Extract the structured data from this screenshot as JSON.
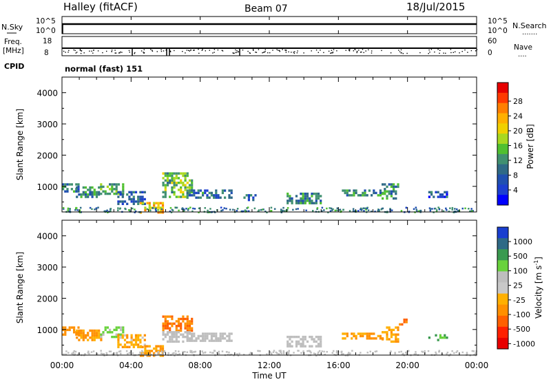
{
  "header": {
    "station": "Halley (fitACF)",
    "beam": "Beam 07",
    "date": "18/Jul/2015"
  },
  "panels": {
    "nsky": {
      "label": "N.Sky",
      "ticks_left": [
        "10^5",
        "10^0"
      ],
      "ticks_right": [
        "10^5",
        "10^0"
      ],
      "right_label": "N.Search",
      "right_dots": "......."
    },
    "freq": {
      "label_line1": "Freq.",
      "label_line2": "[MHz]",
      "ticks_left": [
        "18",
        "8"
      ],
      "ticks_right": [
        "60",
        "0"
      ],
      "right_label": "Nave",
      "right_dots": "....",
      "cpid_label": "CPID",
      "cpid_text": "normal (fast) 151"
    }
  },
  "colorbars": {
    "power": {
      "title": "Power [dB]",
      "labels": [
        "28",
        "24",
        "20",
        "16",
        "12",
        "8",
        "4"
      ],
      "colors": [
        "#e60000",
        "#ff3a00",
        "#ff7f00",
        "#ffb000",
        "#f0d000",
        "#a8d820",
        "#50c030",
        "#409070",
        "#2f6a86",
        "#2050b0",
        "#1d3fd0",
        "#0000ff"
      ]
    },
    "velocity": {
      "title": "Velocity [m s",
      "title_sup": "-1",
      "title_end": "]",
      "labels": [
        "1000",
        "500",
        "100",
        "25",
        "-25",
        "-100",
        "-500",
        "-1000"
      ],
      "colors": [
        "#1a3fd0",
        "#2f6a86",
        "#3a9a50",
        "#69d23c",
        "#bebebe",
        "#c8c8c8",
        "#ffb000",
        "#ff9000",
        "#ff6000",
        "#ff2000",
        "#e80000"
      ]
    }
  },
  "chart_data": [
    {
      "type": "heatmap",
      "title": "Power",
      "ylabel": "Slant Range [km]",
      "xlabel": "",
      "x_ticks": [
        "00:00",
        "04:00",
        "08:00",
        "12:00",
        "16:00",
        "20:00",
        "00:00"
      ],
      "y_ticks": [
        1000,
        2000,
        3000,
        4000
      ],
      "xlim_hours": [
        0,
        24
      ],
      "ylim_km": [
        180,
        4500
      ],
      "colorbar": "Power [dB]",
      "clim": [
        0,
        30
      ],
      "regions": [
        {
          "t0": 0.0,
          "t1": 1.0,
          "r0": 850,
          "r1": 1100,
          "value": 8
        },
        {
          "t0": 0.8,
          "t1": 2.3,
          "r0": 700,
          "r1": 1000,
          "value": 10
        },
        {
          "t0": 2.2,
          "t1": 3.5,
          "r0": 750,
          "r1": 1100,
          "value": 12
        },
        {
          "t0": 3.2,
          "t1": 4.8,
          "r0": 450,
          "r1": 850,
          "value": 6
        },
        {
          "t0": 4.5,
          "t1": 5.8,
          "r0": 200,
          "r1": 500,
          "value": 20
        },
        {
          "t0": 5.8,
          "t1": 7.5,
          "r0": 700,
          "r1": 1450,
          "value": 14
        },
        {
          "t0": 7.2,
          "t1": 9.8,
          "r0": 650,
          "r1": 900,
          "value": 8
        },
        {
          "t0": 10.5,
          "t1": 11.2,
          "r0": 550,
          "r1": 750,
          "value": 6
        },
        {
          "t0": 13.0,
          "t1": 15.0,
          "r0": 500,
          "r1": 800,
          "value": 10
        },
        {
          "t0": 16.2,
          "t1": 18.5,
          "r0": 700,
          "r1": 900,
          "value": 10
        },
        {
          "t0": 18.5,
          "t1": 19.5,
          "r0": 650,
          "r1": 1100,
          "value": 10
        },
        {
          "t0": 21.2,
          "t1": 22.3,
          "r0": 700,
          "r1": 850,
          "value": 6
        }
      ]
    },
    {
      "type": "heatmap",
      "title": "Velocity",
      "ylabel": "Slant Range [km]",
      "xlabel": "Time UT",
      "x_ticks": [
        "00:00",
        "04:00",
        "08:00",
        "12:00",
        "16:00",
        "20:00",
        "00:00"
      ],
      "y_ticks": [
        1000,
        2000,
        3000,
        4000
      ],
      "xlim_hours": [
        0,
        24
      ],
      "ylim_km": [
        180,
        4500
      ],
      "colorbar": "Velocity [m s-1]",
      "clim": [
        -1000,
        1000
      ],
      "regions": [
        {
          "t0": 0.0,
          "t1": 1.0,
          "r0": 850,
          "r1": 1100,
          "value": -200
        },
        {
          "t0": 0.8,
          "t1": 2.3,
          "r0": 700,
          "r1": 1000,
          "value": -120
        },
        {
          "t0": 2.2,
          "t1": 3.5,
          "r0": 750,
          "r1": 1100,
          "value": 30
        },
        {
          "t0": 3.2,
          "t1": 4.8,
          "r0": 450,
          "r1": 850,
          "value": -80
        },
        {
          "t0": 4.5,
          "t1": 5.8,
          "r0": 200,
          "r1": 500,
          "value": -120
        },
        {
          "t0": 5.8,
          "t1": 7.5,
          "r0": 1000,
          "r1": 1450,
          "value": -300
        },
        {
          "t0": 5.8,
          "t1": 7.5,
          "r0": 650,
          "r1": 950,
          "value": 0
        },
        {
          "t0": 7.2,
          "t1": 9.8,
          "r0": 650,
          "r1": 900,
          "value": 0
        },
        {
          "t0": 13.0,
          "t1": 15.0,
          "r0": 500,
          "r1": 800,
          "value": 0
        },
        {
          "t0": 16.2,
          "t1": 18.5,
          "r0": 700,
          "r1": 900,
          "value": -100
        },
        {
          "t0": 18.5,
          "t1": 19.5,
          "r0": 650,
          "r1": 1100,
          "value": -100
        },
        {
          "t0": 19.5,
          "t1": 20.0,
          "r0": 1200,
          "r1": 1350,
          "value": -300
        },
        {
          "t0": 21.2,
          "t1": 22.3,
          "r0": 700,
          "r1": 850,
          "value": 60
        }
      ]
    }
  ]
}
